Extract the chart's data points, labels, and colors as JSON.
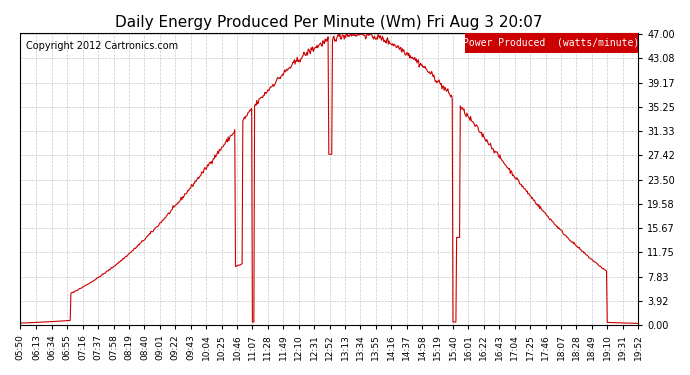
{
  "title": "Daily Energy Produced Per Minute (Wm) Fri Aug 3 20:07",
  "copyright": "Copyright 2012 Cartronics.com",
  "legend_label": "Power Produced  (watts/minute)",
  "legend_bg": "#cc0000",
  "legend_text_color": "#ffffff",
  "line_color": "#cc0000",
  "bg_color": "#ffffff",
  "grid_color": "#bbbbbb",
  "yticks": [
    0.0,
    3.92,
    7.83,
    11.75,
    15.67,
    19.58,
    23.5,
    27.42,
    31.33,
    35.25,
    39.17,
    43.08,
    47.0
  ],
  "ymax": 47.0,
  "ymin": 0.0,
  "x_labels": [
    "05:50",
    "06:13",
    "06:34",
    "06:55",
    "07:16",
    "07:37",
    "07:58",
    "08:19",
    "08:40",
    "09:01",
    "09:22",
    "09:43",
    "10:04",
    "10:25",
    "10:46",
    "11:07",
    "11:28",
    "11:49",
    "12:10",
    "12:31",
    "12:52",
    "13:13",
    "13:34",
    "13:55",
    "14:16",
    "14:37",
    "14:58",
    "15:19",
    "15:40",
    "16:01",
    "16:22",
    "16:43",
    "17:04",
    "17:25",
    "17:46",
    "18:07",
    "18:28",
    "18:49",
    "19:10",
    "19:31",
    "19:52"
  ]
}
